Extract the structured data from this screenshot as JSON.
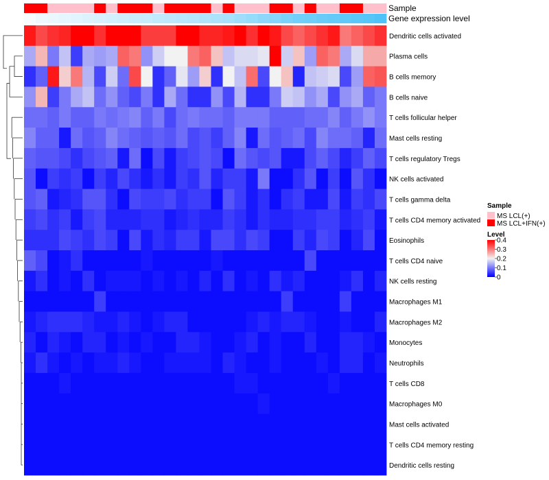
{
  "chart_data": {
    "type": "heatmap",
    "title": "",
    "annotation_tracks": [
      "Sample",
      "Gene expression level"
    ],
    "rows": [
      "Dendritic cells activated",
      "Plasma cells",
      "B cells memory",
      "B cells naive",
      "T cells follicular helper",
      "Mast cells resting",
      "T cells regulatory  Tregs",
      "NK cells activated",
      "T cells gamma delta",
      "T cells CD4 memory activated",
      "Eosinophils",
      "T cells CD4 naive",
      "NK cells resting",
      "Macrophages M1",
      "Macrophages M2",
      "Monocytes",
      "Neutrophils",
      "T cells CD8",
      "Macrophages M0",
      "Mast cells activated",
      "T cells CD4 memory resting",
      "Dendritic cells resting"
    ],
    "sample_annotation": [
      1,
      1,
      0,
      0,
      0,
      0,
      1,
      0,
      1,
      1,
      1,
      0,
      1,
      1,
      1,
      1,
      0,
      1,
      0,
      0,
      0,
      1,
      1,
      0,
      1,
      0,
      0,
      1,
      1,
      0,
      0
    ],
    "gene_expression_annotation": [
      0.05,
      0.1,
      0.12,
      0.15,
      0.17,
      0.2,
      0.22,
      0.25,
      0.27,
      0.3,
      0.32,
      0.35,
      0.37,
      0.4,
      0.42,
      0.45,
      0.47,
      0.5,
      0.55,
      0.6,
      0.65,
      0.7,
      0.75,
      0.8,
      0.82,
      0.85,
      0.88,
      0.9,
      0.93,
      0.96,
      1.0
    ],
    "values": [
      [
        0.38,
        0.34,
        0.36,
        0.37,
        0.4,
        0.4,
        0.36,
        0.4,
        0.4,
        0.4,
        0.35,
        0.35,
        0.35,
        0.4,
        0.4,
        0.37,
        0.37,
        0.38,
        0.4,
        0.36,
        0.4,
        0.38,
        0.34,
        0.32,
        0.34,
        0.36,
        0.38,
        0.3,
        0.32,
        0.34,
        0.36
      ],
      [
        0.14,
        0.25,
        0.1,
        0.16,
        0.05,
        0.14,
        0.13,
        0.14,
        0.32,
        0.3,
        0.12,
        0.17,
        0.2,
        0.2,
        0.3,
        0.32,
        0.24,
        0.16,
        0.18,
        0.18,
        0.19,
        0.4,
        0.17,
        0.24,
        0.13,
        0.32,
        0.3,
        0.14,
        0.18,
        0.26,
        0.26
      ],
      [
        0.04,
        0.08,
        0.38,
        0.23,
        0.3,
        0.15,
        0.06,
        0.17,
        0.09,
        0.34,
        0.2,
        0.04,
        0.08,
        0.19,
        0.13,
        0.23,
        0.04,
        0.2,
        0.16,
        0.31,
        0.06,
        0.2,
        0.24,
        0.03,
        0.16,
        0.17,
        0.18,
        0.06,
        0.13,
        0.32,
        0.33
      ],
      [
        0.12,
        0.25,
        0.05,
        0.1,
        0.14,
        0.16,
        0.09,
        0.12,
        0.08,
        0.06,
        0.1,
        0.04,
        0.14,
        0.09,
        0.04,
        0.04,
        0.12,
        0.06,
        0.15,
        0.04,
        0.04,
        0.1,
        0.17,
        0.16,
        0.12,
        0.14,
        0.06,
        0.12,
        0.14,
        0.08,
        0.1
      ],
      [
        0.09,
        0.09,
        0.08,
        0.1,
        0.08,
        0.08,
        0.1,
        0.09,
        0.1,
        0.11,
        0.08,
        0.1,
        0.06,
        0.09,
        0.1,
        0.09,
        0.09,
        0.08,
        0.1,
        0.1,
        0.1,
        0.08,
        0.08,
        0.08,
        0.09,
        0.09,
        0.11,
        0.08,
        0.1,
        0.12,
        0.1
      ],
      [
        0.11,
        0.08,
        0.08,
        0.02,
        0.09,
        0.07,
        0.08,
        0.11,
        0.09,
        0.08,
        0.07,
        0.08,
        0.07,
        0.09,
        0.06,
        0.07,
        0.05,
        0.08,
        0.11,
        0.02,
        0.09,
        0.07,
        0.08,
        0.09,
        0.06,
        0.11,
        0.09,
        0.09,
        0.08,
        0.03,
        0.09
      ],
      [
        0.08,
        0.07,
        0.07,
        0.06,
        0.04,
        0.06,
        0.07,
        0.08,
        0.02,
        0.09,
        0.01,
        0.06,
        0.02,
        0.05,
        0.06,
        0.07,
        0.06,
        0.01,
        0.09,
        0.07,
        0.06,
        0.07,
        0.02,
        0.02,
        0.06,
        0.08,
        0.06,
        0.03,
        0.05,
        0.08,
        0.06
      ],
      [
        0.07,
        0.01,
        0.05,
        0.04,
        0.05,
        0.01,
        0.05,
        0.03,
        0.06,
        0.04,
        0.02,
        0.04,
        0.02,
        0.05,
        0.04,
        0.07,
        0.03,
        0.05,
        0.05,
        0.02,
        0.1,
        0.01,
        0.01,
        0.04,
        0.07,
        0.01,
        0.05,
        0.01,
        0.07,
        0.04,
        0.01
      ],
      [
        0.07,
        0.08,
        0.02,
        0.03,
        0.04,
        0.07,
        0.07,
        0.04,
        0.01,
        0.06,
        0.05,
        0.05,
        0.06,
        0.04,
        0.05,
        0.05,
        0.01,
        0.07,
        0.05,
        0.02,
        0.04,
        0.01,
        0.04,
        0.05,
        0.02,
        0.02,
        0.06,
        0.02,
        0.05,
        0.04,
        0.06
      ],
      [
        0.05,
        0.06,
        0.04,
        0.05,
        0.02,
        0.05,
        0.06,
        0.03,
        0.03,
        0.03,
        0.04,
        0.04,
        0.02,
        0.03,
        0.04,
        0.03,
        0.03,
        0.05,
        0.04,
        0.02,
        0.04,
        0.03,
        0.03,
        0.04,
        0.04,
        0.05,
        0.05,
        0.03,
        0.04,
        0.05,
        0.02
      ],
      [
        0.04,
        0.04,
        0.04,
        0.06,
        0.05,
        0.04,
        0.06,
        0.05,
        0.01,
        0.06,
        0.02,
        0.04,
        0.03,
        0.05,
        0.05,
        0.02,
        0.06,
        0.06,
        0.04,
        0.06,
        0.05,
        0.01,
        0.01,
        0.05,
        0.03,
        0.06,
        0.05,
        0.01,
        0.03,
        0.06,
        0.01
      ],
      [
        0.08,
        0.06,
        0.01,
        0.02,
        0.04,
        0.01,
        0.01,
        0.01,
        0.01,
        0.01,
        0.02,
        0.01,
        0.01,
        0.01,
        0.01,
        0.01,
        0.02,
        0.01,
        0.01,
        0.01,
        0.01,
        0.01,
        0.01,
        0.01,
        0.06,
        0.01,
        0.01,
        0.01,
        0.01,
        0.01,
        0.01
      ],
      [
        0.02,
        0.04,
        0.01,
        0.02,
        0.01,
        0.04,
        0.01,
        0.02,
        0.02,
        0.02,
        0.01,
        0.02,
        0.01,
        0.02,
        0.01,
        0.03,
        0.01,
        0.04,
        0.01,
        0.02,
        0.01,
        0.04,
        0.02,
        0.03,
        0.01,
        0.01,
        0.01,
        0.02,
        0.04,
        0.01,
        0.03
      ],
      [
        0.01,
        0.01,
        0.01,
        0.01,
        0.01,
        0.01,
        0.05,
        0.01,
        0.01,
        0.01,
        0.01,
        0.01,
        0.01,
        0.01,
        0.01,
        0.01,
        0.01,
        0.01,
        0.01,
        0.01,
        0.01,
        0.01,
        0.05,
        0.01,
        0.01,
        0.01,
        0.01,
        0.05,
        0.01,
        0.01,
        0.01
      ],
      [
        0.02,
        0.03,
        0.04,
        0.04,
        0.04,
        0.03,
        0.02,
        0.02,
        0.03,
        0.02,
        0.01,
        0.02,
        0.03,
        0.03,
        0.01,
        0.01,
        0.01,
        0.01,
        0.01,
        0.02,
        0.03,
        0.02,
        0.03,
        0.03,
        0.02,
        0.01,
        0.01,
        0.02,
        0.01,
        0.01,
        0.03
      ],
      [
        0.03,
        0.01,
        0.03,
        0.02,
        0.01,
        0.03,
        0.03,
        0.01,
        0.02,
        0.01,
        0.02,
        0.01,
        0.01,
        0.03,
        0.03,
        0.02,
        0.01,
        0.01,
        0.02,
        0.03,
        0.01,
        0.02,
        0.01,
        0.01,
        0.03,
        0.01,
        0.01,
        0.03,
        0.03,
        0.02,
        0.01
      ],
      [
        0.02,
        0.04,
        0.02,
        0.01,
        0.02,
        0.01,
        0.02,
        0.02,
        0.03,
        0.02,
        0.01,
        0.01,
        0.02,
        0.02,
        0.02,
        0.02,
        0.01,
        0.03,
        0.02,
        0.01,
        0.01,
        0.02,
        0.01,
        0.01,
        0.01,
        0.02,
        0.01,
        0.03,
        0.03,
        0.01,
        0.02
      ],
      [
        0.01,
        0.01,
        0.01,
        0.02,
        0.01,
        0.01,
        0.01,
        0.01,
        0.01,
        0.01,
        0.01,
        0.01,
        0.01,
        0.01,
        0.01,
        0.01,
        0.01,
        0.01,
        0.02,
        0.02,
        0.01,
        0.01,
        0.01,
        0.01,
        0.01,
        0.01,
        0.02,
        0.01,
        0.01,
        0.01,
        0.01
      ],
      [
        0.01,
        0.01,
        0.01,
        0.01,
        0.01,
        0.01,
        0.01,
        0.01,
        0.01,
        0.01,
        0.01,
        0.01,
        0.01,
        0.01,
        0.01,
        0.01,
        0.01,
        0.01,
        0.01,
        0.01,
        0.02,
        0.01,
        0.01,
        0.01,
        0.01,
        0.01,
        0.01,
        0.01,
        0.01,
        0.01,
        0.01
      ],
      [
        0.01,
        0.01,
        0.01,
        0.01,
        0.01,
        0.01,
        0.01,
        0.01,
        0.01,
        0.01,
        0.01,
        0.01,
        0.01,
        0.01,
        0.01,
        0.01,
        0.01,
        0.01,
        0.01,
        0.01,
        0.01,
        0.01,
        0.01,
        0.01,
        0.01,
        0.01,
        0.01,
        0.01,
        0.01,
        0.01,
        0.01
      ],
      [
        0.01,
        0.01,
        0.01,
        0.01,
        0.01,
        0.01,
        0.01,
        0.01,
        0.01,
        0.01,
        0.01,
        0.01,
        0.01,
        0.01,
        0.01,
        0.01,
        0.01,
        0.01,
        0.01,
        0.01,
        0.01,
        0.01,
        0.01,
        0.01,
        0.01,
        0.01,
        0.01,
        0.01,
        0.01,
        0.01,
        0.01
      ],
      [
        0.01,
        0.01,
        0.01,
        0.01,
        0.01,
        0.01,
        0.01,
        0.01,
        0.01,
        0.01,
        0.01,
        0.01,
        0.01,
        0.01,
        0.01,
        0.01,
        0.01,
        0.01,
        0.01,
        0.01,
        0.01,
        0.01,
        0.01,
        0.01,
        0.01,
        0.01,
        0.01,
        0.01,
        0.01,
        0.01,
        0.01
      ]
    ],
    "legend": {
      "sample_title": "Sample",
      "sample_entries": [
        {
          "label": "MS LCL(+)",
          "color": "#ffc0cb"
        },
        {
          "label": "MS LCL+IFN(+)",
          "color": "#ff0000"
        }
      ],
      "level_title": "Level",
      "level_ticks": [
        "0.4",
        "0.3",
        "0.2",
        "0.1",
        "0"
      ],
      "level_range": [
        0,
        0.4
      ],
      "placement": "right"
    },
    "colors": {
      "low": "#0000ff",
      "mid": "#f2f2f2",
      "high": "#ff0000",
      "gene_low": "#ffffff",
      "gene_high": "#4fc3f7"
    }
  }
}
